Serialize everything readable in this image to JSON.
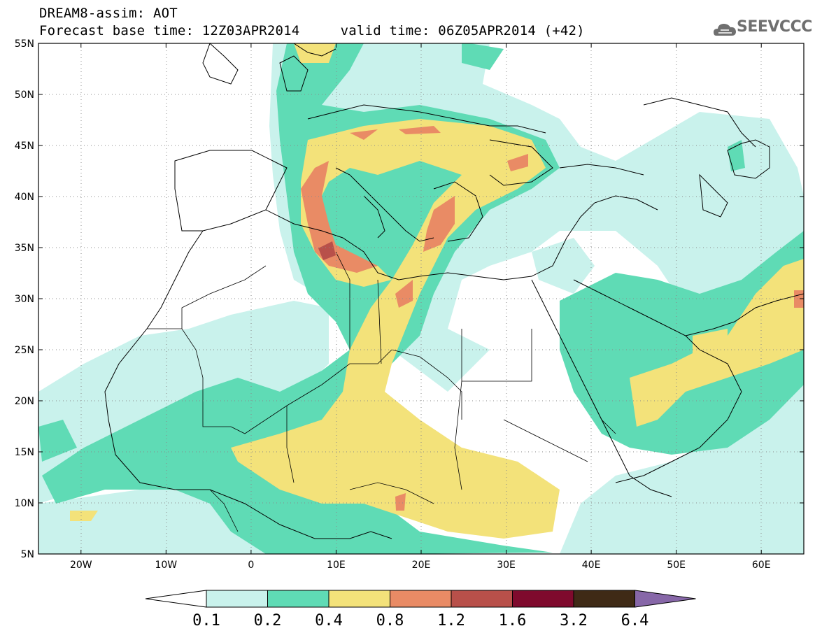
{
  "header": {
    "title_line1": "DREAM8-assim: AOT",
    "title_line2": "Forecast base time: 12Z03APR2014     valid time: 06Z05APR2014 (+42)",
    "logo_text": "SEEVCCC",
    "logo_icon": "cloud-logo-icon"
  },
  "axes": {
    "lat_labels": [
      "55N",
      "50N",
      "45N",
      "40N",
      "35N",
      "30N",
      "25N",
      "20N",
      "15N",
      "10N",
      "5N"
    ],
    "lat_values": [
      55,
      50,
      45,
      40,
      35,
      30,
      25,
      20,
      15,
      10,
      5
    ],
    "lon_labels": [
      "20W",
      "10W",
      "0",
      "10E",
      "20E",
      "30E",
      "40E",
      "50E",
      "60E"
    ],
    "lon_values": [
      -20,
      -10,
      0,
      10,
      20,
      30,
      40,
      50,
      60
    ],
    "lon_range": [
      -25,
      65
    ],
    "lat_range": [
      5,
      55
    ]
  },
  "legend": {
    "labels": [
      "0.1",
      "0.2",
      "0.4",
      "0.8",
      "1.2",
      "1.6",
      "3.2",
      "6.4"
    ],
    "colors": [
      "#ffffff",
      "#c9f2ec",
      "#5fdbb5",
      "#f3e27a",
      "#e98b65",
      "#b8504a",
      "#7f0a2d",
      "#3f2a16",
      "#8767a8"
    ]
  },
  "colors": {
    "c1": "#c9f2ec",
    "c2": "#5fdbb5",
    "c3": "#f3e27a",
    "c4": "#e98b65",
    "c5": "#b8504a"
  }
}
